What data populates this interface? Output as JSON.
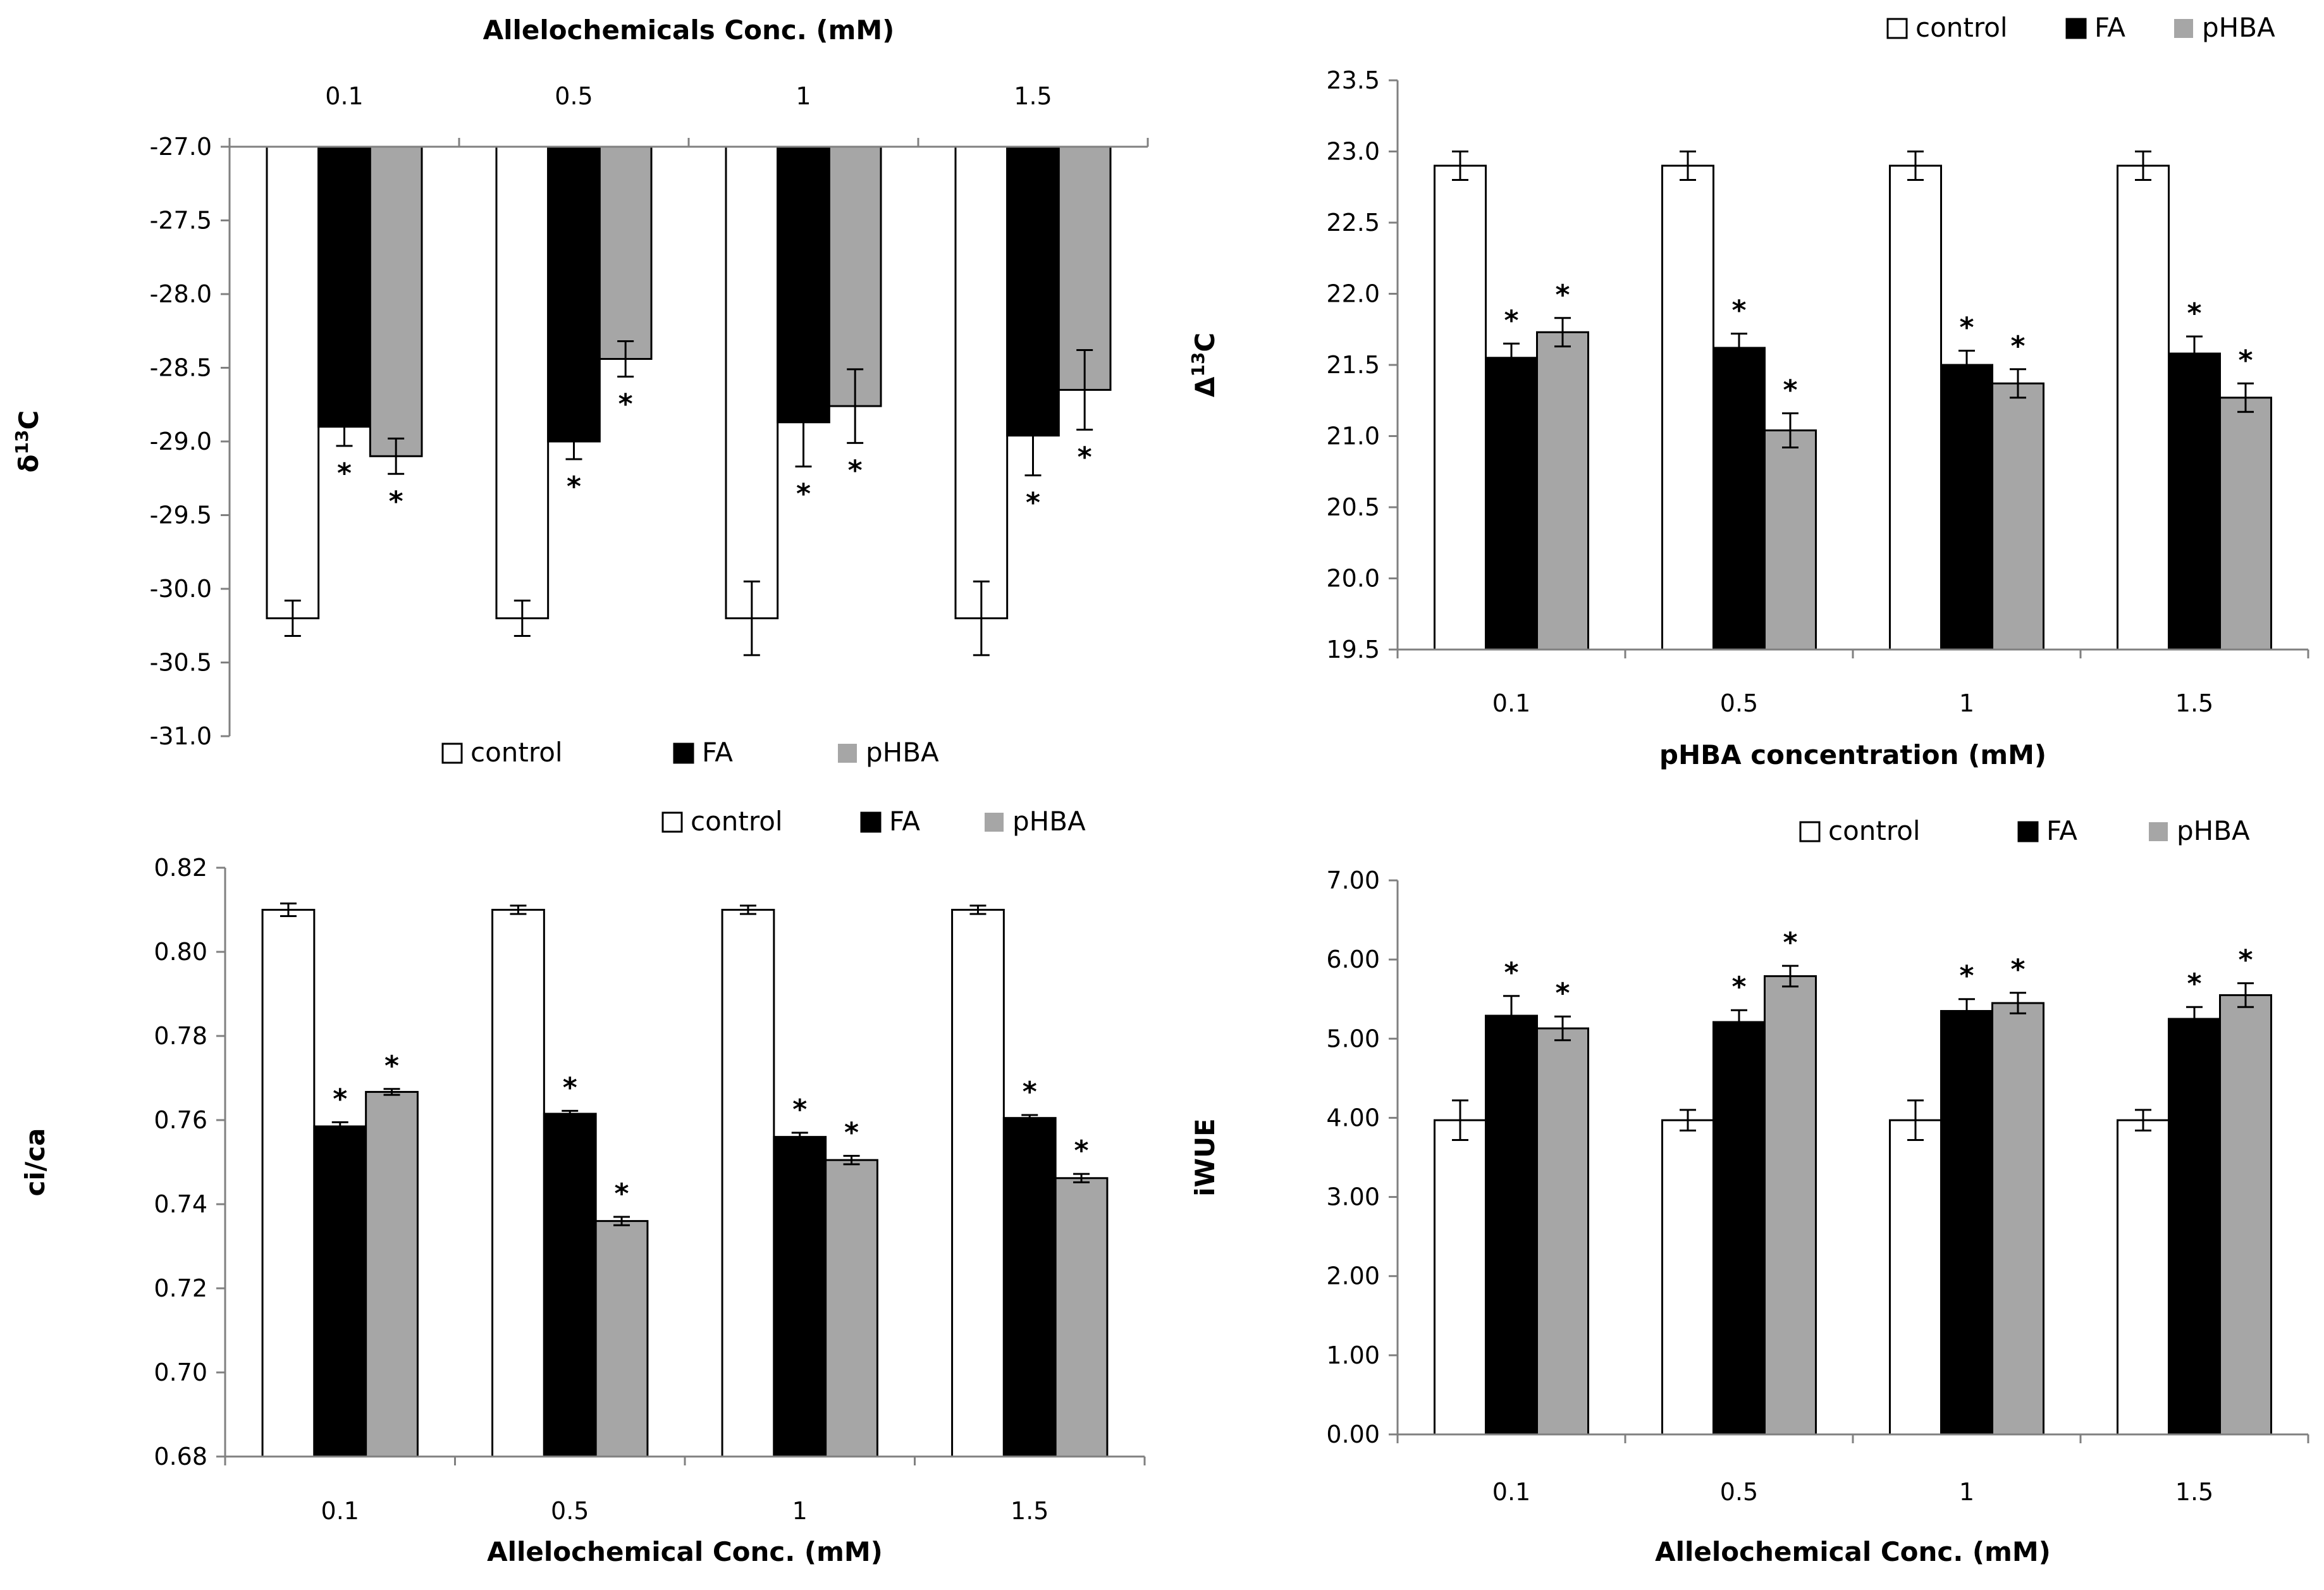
{
  "chart_data": [
    {
      "id": "panel-d13c",
      "type": "bar",
      "categories": [
        "0.1",
        "0.5",
        "1",
        "1.5"
      ],
      "series": [
        {
          "name": "control",
          "values": [
            -30.2,
            -30.2,
            -30.2,
            -30.2
          ],
          "errors": [
            0.12,
            0.12,
            0.25,
            0.25
          ],
          "sig": [
            false,
            false,
            false,
            false
          ]
        },
        {
          "name": "FA",
          "values": [
            -28.9,
            -29.0,
            -28.87,
            -28.96
          ],
          "errors": [
            0.13,
            0.12,
            0.3,
            0.27
          ],
          "sig": [
            true,
            true,
            true,
            true
          ]
        },
        {
          "name": "pHBA",
          "values": [
            -29.1,
            -28.44,
            -28.76,
            -28.65
          ],
          "errors": [
            0.12,
            0.12,
            0.25,
            0.27
          ],
          "sig": [
            true,
            true,
            true,
            true
          ]
        }
      ],
      "title": "",
      "xlabel": "Allelochemicals Conc. (mM)",
      "ylabel": "δ13C",
      "ylabel_main": "δ",
      "ylabel_sup": "13",
      "ylabel_tail": "C",
      "ylim": [
        -31.0,
        -27.0
      ],
      "yticks": [
        "-27.0",
        "-27.5",
        "-28.0",
        "-28.5",
        "-29.0",
        "-29.5",
        "-30.0",
        "-30.5",
        "-31.0"
      ],
      "bar_baseline": -27.0,
      "x_axis_position": "top",
      "legend": [
        "control",
        "FA",
        "pHBA"
      ],
      "legend_position": "bottom",
      "sig_marker": "*"
    },
    {
      "id": "panel-D13c",
      "type": "bar",
      "categories": [
        "0.1",
        "0.5",
        "1",
        "1.5"
      ],
      "series": [
        {
          "name": "control",
          "values": [
            22.9,
            22.9,
            22.9,
            22.9
          ],
          "errors": [
            0.1,
            0.1,
            0.1,
            0.1
          ],
          "sig": [
            false,
            false,
            false,
            false
          ]
        },
        {
          "name": "FA",
          "values": [
            21.55,
            21.62,
            21.5,
            21.58
          ],
          "errors": [
            0.1,
            0.1,
            0.1,
            0.12
          ],
          "sig": [
            true,
            true,
            true,
            true
          ]
        },
        {
          "name": "pHBA",
          "values": [
            21.73,
            21.04,
            21.37,
            21.27
          ],
          "errors": [
            0.1,
            0.12,
            0.1,
            0.1
          ],
          "sig": [
            true,
            true,
            true,
            true
          ]
        }
      ],
      "title": "",
      "xlabel": "pHBA concentration (mM)",
      "ylabel": "Δ13C",
      "ylabel_main": "Δ",
      "ylabel_sup": "13",
      "ylabel_tail": "C",
      "ylim": [
        19.5,
        23.5
      ],
      "yticks": [
        "19.5",
        "20.0",
        "20.5",
        "21.0",
        "21.5",
        "22.0",
        "22.5",
        "23.0",
        "23.5"
      ],
      "bar_baseline": 19.5,
      "x_axis_position": "bottom",
      "legend": [
        "control",
        "FA",
        "pHBA"
      ],
      "legend_position": "top",
      "sig_marker": "*"
    },
    {
      "id": "panel-cica",
      "type": "bar",
      "categories": [
        "0.1",
        "0.5",
        "1",
        "1.5"
      ],
      "series": [
        {
          "name": "control",
          "values": [
            0.81,
            0.81,
            0.81,
            0.81
          ],
          "errors": [
            0.0015,
            0.001,
            0.001,
            0.001
          ],
          "sig": [
            false,
            false,
            false,
            false
          ]
        },
        {
          "name": "FA",
          "values": [
            0.7585,
            0.7615,
            0.756,
            0.7605
          ],
          "errors": [
            0.001,
            0.0007,
            0.001,
            0.0007
          ],
          "sig": [
            true,
            true,
            true,
            true
          ]
        },
        {
          "name": "pHBA",
          "values": [
            0.7667,
            0.736,
            0.7505,
            0.7462
          ],
          "errors": [
            0.0007,
            0.001,
            0.001,
            0.001
          ],
          "sig": [
            true,
            true,
            true,
            true
          ]
        }
      ],
      "title": "",
      "xlabel": "Allelochemical Conc. (mM)",
      "ylabel": "ci/ca",
      "ylabel_main": "ci/ca",
      "ylabel_sup": "",
      "ylabel_tail": "",
      "ylim": [
        0.68,
        0.82
      ],
      "yticks": [
        "0.82",
        "0.80",
        "0.78",
        "0.76",
        "0.74",
        "0.72",
        "0.70",
        "0.68"
      ],
      "bar_baseline": 0.68,
      "x_axis_position": "bottom",
      "legend": [
        "control",
        "FA",
        "pHBA"
      ],
      "legend_position": "top",
      "sig_marker": "*"
    },
    {
      "id": "panel-iwue",
      "type": "bar",
      "categories": [
        "0.1",
        "0.5",
        "1",
        "1.5"
      ],
      "series": [
        {
          "name": "control",
          "values": [
            3.97,
            3.97,
            3.97,
            3.97
          ],
          "errors": [
            0.25,
            0.13,
            0.25,
            0.13
          ],
          "sig": [
            false,
            false,
            false,
            false
          ]
        },
        {
          "name": "FA",
          "values": [
            5.29,
            5.21,
            5.35,
            5.25
          ],
          "errors": [
            0.25,
            0.15,
            0.15,
            0.15
          ],
          "sig": [
            true,
            true,
            true,
            true
          ]
        },
        {
          "name": "pHBA",
          "values": [
            5.13,
            5.79,
            5.45,
            5.55
          ],
          "errors": [
            0.15,
            0.13,
            0.13,
            0.15
          ],
          "sig": [
            true,
            true,
            true,
            true
          ]
        }
      ],
      "title": "",
      "xlabel": "Allelochemical Conc. (mM)",
      "ylabel": "iWUE",
      "ylabel_main": "iWUE",
      "ylabel_sup": "",
      "ylabel_tail": "",
      "ylim": [
        0.0,
        7.0
      ],
      "yticks": [
        "7.00",
        "6.00",
        "5.00",
        "4.00",
        "3.00",
        "2.00",
        "1.00",
        "0.00"
      ],
      "bar_baseline": 0.0,
      "x_axis_position": "bottom",
      "legend": [
        "control",
        "FA",
        "pHBA"
      ],
      "legend_position": "top",
      "sig_marker": "*"
    }
  ],
  "colors": {
    "control": "#ffffff",
    "FA": "#000000",
    "pHBA": "#a6a6a6",
    "axis": "#808080",
    "bar_outline": "#000000"
  }
}
